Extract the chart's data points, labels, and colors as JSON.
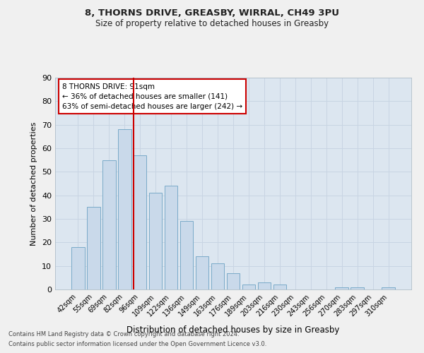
{
  "title": "8, THORNS DRIVE, GREASBY, WIRRAL, CH49 3PU",
  "subtitle": "Size of property relative to detached houses in Greasby",
  "xlabel": "Distribution of detached houses by size in Greasby",
  "ylabel": "Number of detached properties",
  "categories": [
    "42sqm",
    "55sqm",
    "69sqm",
    "82sqm",
    "96sqm",
    "109sqm",
    "122sqm",
    "136sqm",
    "149sqm",
    "163sqm",
    "176sqm",
    "189sqm",
    "203sqm",
    "216sqm",
    "230sqm",
    "243sqm",
    "256sqm",
    "270sqm",
    "283sqm",
    "297sqm",
    "310sqm"
  ],
  "values": [
    18,
    35,
    55,
    68,
    57,
    41,
    44,
    29,
    14,
    11,
    7,
    2,
    3,
    2,
    0,
    0,
    0,
    1,
    1,
    0,
    1
  ],
  "bar_color": "#c9d9ea",
  "bar_edge_color": "#7aaac8",
  "grid_color": "#c8d4e3",
  "background_color": "#dce6f0",
  "fig_background": "#f0f0f0",
  "marker_bin_index": 4,
  "annotation_line1": "8 THORNS DRIVE: 91sqm",
  "annotation_line2": "← 36% of detached houses are smaller (141)",
  "annotation_line3": "63% of semi-detached houses are larger (242) →",
  "marker_color": "#cc0000",
  "annotation_box_facecolor": "#ffffff",
  "annotation_box_edgecolor": "#cc0000",
  "ylim": [
    0,
    90
  ],
  "yticks": [
    0,
    10,
    20,
    30,
    40,
    50,
    60,
    70,
    80,
    90
  ],
  "footnote1": "Contains HM Land Registry data © Crown copyright and database right 2024.",
  "footnote2": "Contains public sector information licensed under the Open Government Licence v3.0."
}
